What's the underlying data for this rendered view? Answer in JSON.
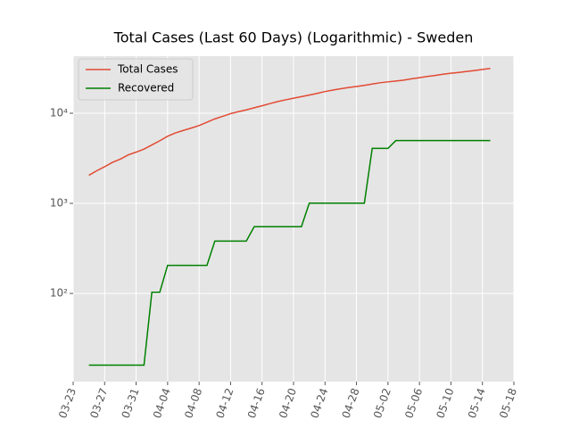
{
  "chart_data": {
    "type": "line",
    "title": "Total Cases (Last 60 Days) (Logarithmic) - Sweden",
    "x": [
      "03-25",
      "03-26",
      "03-27",
      "03-28",
      "03-29",
      "03-30",
      "03-31",
      "04-01",
      "04-02",
      "04-03",
      "04-04",
      "04-05",
      "04-06",
      "04-07",
      "04-08",
      "04-09",
      "04-10",
      "04-11",
      "04-12",
      "04-13",
      "04-14",
      "04-15",
      "04-16",
      "04-17",
      "04-18",
      "04-19",
      "04-20",
      "04-21",
      "04-22",
      "04-23",
      "04-24",
      "04-25",
      "04-26",
      "04-27",
      "04-28",
      "04-29",
      "04-30",
      "05-01",
      "05-02",
      "05-03",
      "05-04",
      "05-05",
      "05-06",
      "05-07",
      "05-08",
      "05-09",
      "05-10",
      "05-11",
      "05-12",
      "05-13",
      "05-14",
      "05-15"
    ],
    "series": [
      {
        "name": "Total Cases",
        "color": "#e24a33",
        "values": [
          2050,
          2300,
          2550,
          2850,
          3100,
          3450,
          3700,
          4000,
          4450,
          4950,
          5550,
          6050,
          6450,
          6850,
          7300,
          7950,
          8650,
          9250,
          9900,
          10400,
          10900,
          11500,
          12100,
          12800,
          13500,
          14100,
          14700,
          15300,
          15900,
          16600,
          17400,
          18100,
          18700,
          19300,
          19800,
          20400,
          21100,
          21800,
          22300,
          22800,
          23300,
          24100,
          24800,
          25600,
          26300,
          27100,
          27800,
          28400,
          29100,
          29800,
          30600,
          31400
        ]
      },
      {
        "name": "Recovered",
        "color": "#008000",
        "values": [
          16,
          16,
          16,
          16,
          16,
          16,
          16,
          16,
          103,
          103,
          205,
          205,
          205,
          205,
          205,
          205,
          381,
          381,
          381,
          381,
          381,
          550,
          550,
          550,
          550,
          550,
          550,
          550,
          1005,
          1005,
          1005,
          1005,
          1005,
          1005,
          1005,
          1005,
          4074,
          4074,
          4074,
          4971,
          4971,
          4971,
          4971,
          4971,
          4971,
          4971,
          4971,
          4971,
          4971,
          4971,
          4971,
          4971
        ]
      }
    ],
    "xlim": [
      "03-23",
      "05-18"
    ],
    "xticks": [
      "03-23",
      "03-27",
      "03-31",
      "04-04",
      "04-08",
      "04-12",
      "04-16",
      "04-20",
      "04-24",
      "04-28",
      "05-02",
      "05-06",
      "05-10",
      "05-14",
      "05-18"
    ],
    "ylim": [
      10.5,
      43000
    ],
    "yticks": [
      {
        "value": 100,
        "label": "10²"
      },
      {
        "value": 1000,
        "label": "10³"
      },
      {
        "value": 10000,
        "label": "10⁴"
      }
    ],
    "log_y": true,
    "grid": true,
    "legend": "upper left"
  }
}
